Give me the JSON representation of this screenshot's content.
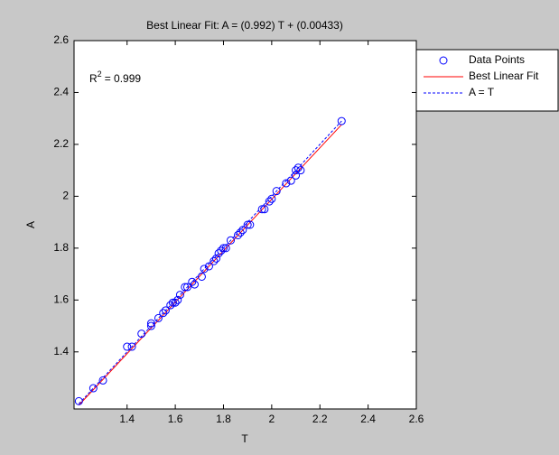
{
  "chart_data": {
    "type": "scatter",
    "title": "Best Linear Fit:  A = (0.992) T + (0.00433)",
    "x_label": "T",
    "y_label": "A",
    "annotation": {
      "base": "R",
      "sup": "2",
      "text": "= 0.999"
    },
    "xlim": [
      1.18,
      2.6
    ],
    "ylim": [
      1.18,
      2.6
    ],
    "xticks": [
      1.4,
      1.6,
      1.8,
      2,
      2.2,
      2.4,
      2.6
    ],
    "yticks": [
      1.4,
      1.6,
      1.8,
      2,
      2.2,
      2.4,
      2.6
    ],
    "legend": "outside-top-right",
    "series": [
      {
        "name": "Data Points",
        "color": "#0000ff",
        "x": [
          1.2,
          1.26,
          1.3,
          1.4,
          1.42,
          1.46,
          1.5,
          1.5,
          1.53,
          1.55,
          1.56,
          1.58,
          1.59,
          1.6,
          1.61,
          1.62,
          1.64,
          1.65,
          1.67,
          1.68,
          1.71,
          1.72,
          1.74,
          1.76,
          1.77,
          1.78,
          1.79,
          1.8,
          1.81,
          1.83,
          1.86,
          1.87,
          1.88,
          1.9,
          1.91,
          1.96,
          1.97,
          1.99,
          2.0,
          2.02,
          2.06,
          2.08,
          2.1,
          2.1,
          2.11,
          2.12,
          2.29
        ],
        "values": [
          1.21,
          1.26,
          1.29,
          1.42,
          1.42,
          1.47,
          1.5,
          1.51,
          1.53,
          1.55,
          1.56,
          1.58,
          1.59,
          1.59,
          1.6,
          1.62,
          1.65,
          1.65,
          1.67,
          1.66,
          1.69,
          1.72,
          1.73,
          1.75,
          1.76,
          1.78,
          1.79,
          1.8,
          1.8,
          1.83,
          1.85,
          1.86,
          1.87,
          1.89,
          1.89,
          1.95,
          1.95,
          1.98,
          1.99,
          2.02,
          2.05,
          2.06,
          2.08,
          2.1,
          2.11,
          2.1,
          2.29
        ]
      },
      {
        "name": "Best Linear Fit",
        "color": "#ff0000",
        "slope": 0.992,
        "intercept": 0.00433
      },
      {
        "name": "A = T",
        "color": "#0000ff",
        "dashed": true
      }
    ]
  }
}
